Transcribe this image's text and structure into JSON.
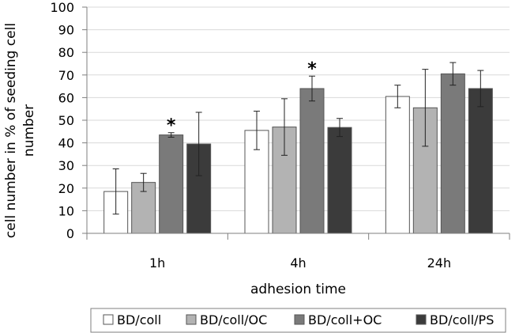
{
  "chart_data": {
    "type": "bar",
    "xlabel": "adhesion time",
    "ylabel_lines": [
      "cell number in % of seeding cell",
      "number"
    ],
    "ylim": [
      0,
      100
    ],
    "yticks": [
      0,
      10,
      20,
      30,
      40,
      50,
      60,
      70,
      80,
      90,
      100
    ],
    "categories": [
      "1h",
      "4h",
      "24h"
    ],
    "grid": "horizontal",
    "legend_position": "bottom",
    "significance_marker": "*",
    "series": [
      {
        "name": "BD/coll",
        "color": "#ffffff",
        "values": [
          18.5,
          45.5,
          60.5
        ],
        "errors": [
          10,
          8.5,
          5
        ]
      },
      {
        "name": "BD/coll/OC",
        "color": "#b3b3b3",
        "values": [
          22.5,
          47.0,
          55.5
        ],
        "errors": [
          4,
          12.5,
          17
        ]
      },
      {
        "name": "BD/coll+OC",
        "color": "#7a7a7a",
        "values": [
          43.5,
          64.0,
          70.5
        ],
        "errors": [
          1,
          5.5,
          5
        ],
        "significant": [
          true,
          true,
          false
        ]
      },
      {
        "name": "BD/coll/PS",
        "color": "#3b3b3b",
        "values": [
          39.5,
          46.8,
          64.0
        ],
        "errors": [
          14,
          4,
          8
        ]
      }
    ]
  }
}
